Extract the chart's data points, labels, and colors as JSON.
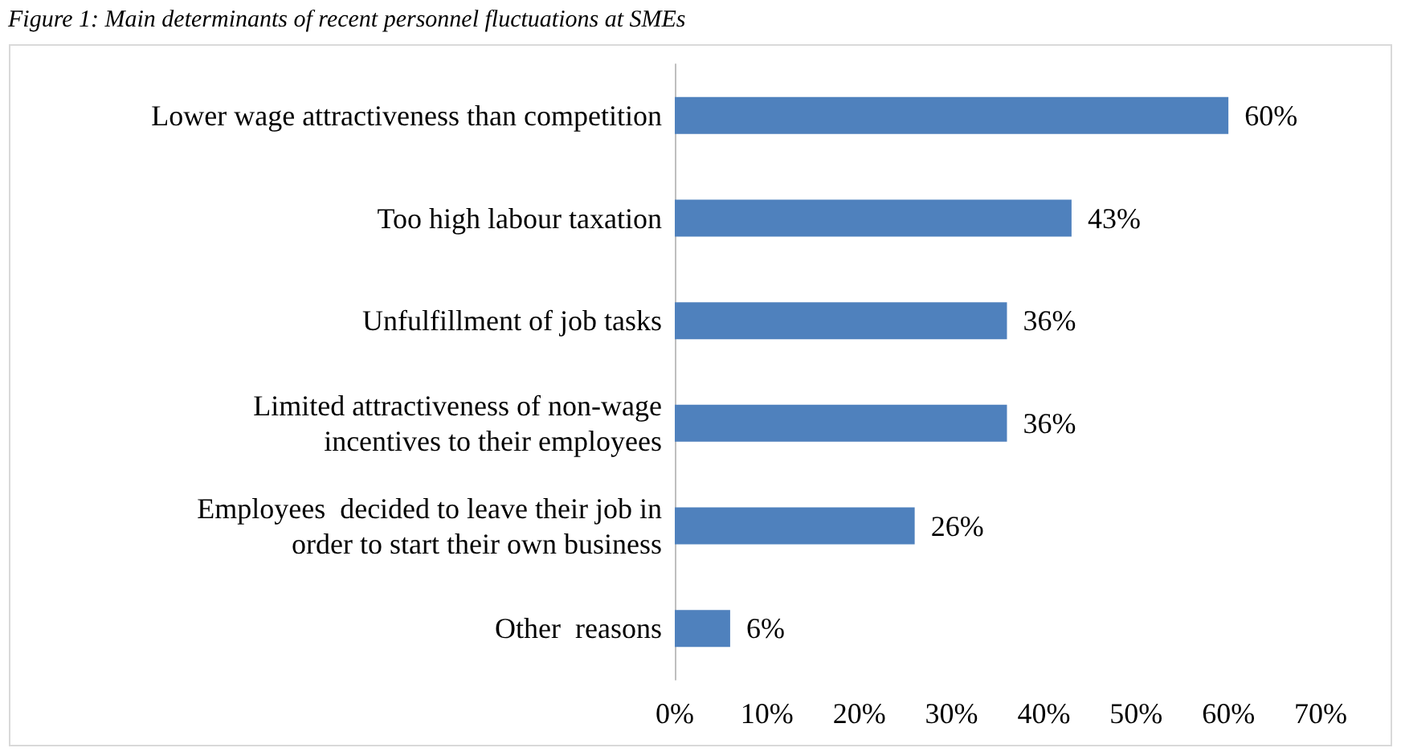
{
  "chart_data": {
    "type": "bar",
    "orientation": "horizontal",
    "title": "Figure 1: Main determinants of recent personnel fluctuations at SMEs",
    "categories": [
      "Lower wage attractiveness than competition",
      "Too high labour taxation",
      "Unfulfillment of job tasks",
      "Limited attractiveness of non-wage\nincentives to their employees",
      "Employees  decided to leave their job in\norder to start their own business",
      "Other  reasons"
    ],
    "values": [
      60,
      43,
      36,
      36,
      26,
      6
    ],
    "value_labels": [
      "60%",
      "43%",
      "36%",
      "36%",
      "26%",
      "6%"
    ],
    "color": "#4f81bd",
    "xlim": [
      0,
      70
    ],
    "xticks": [
      {
        "value": 0,
        "label": "0%"
      },
      {
        "value": 10,
        "label": "10%"
      },
      {
        "value": 20,
        "label": "20%"
      },
      {
        "value": 30,
        "label": "30%"
      },
      {
        "value": 40,
        "label": "40%"
      },
      {
        "value": 50,
        "label": "50%"
      },
      {
        "value": 60,
        "label": "60%"
      },
      {
        "value": 70,
        "label": "70%"
      }
    ],
    "grid": false
  }
}
